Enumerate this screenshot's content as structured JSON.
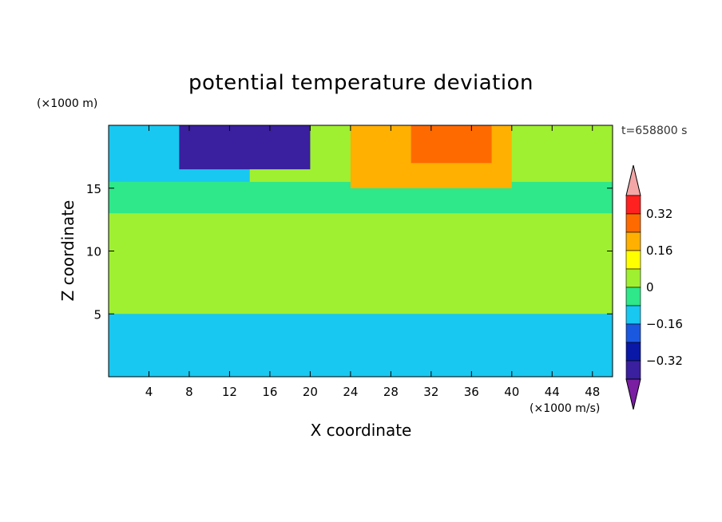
{
  "chart_data": {
    "type": "heatmap",
    "title": "potential temperature deviation",
    "xlabel": "X coordinate",
    "ylabel": "Z coordinate",
    "x_unit": "(×1000 m/s)",
    "y_unit": "(×1000 m)",
    "time_label": "t=658800 s",
    "xlim": [
      0,
      50
    ],
    "ylim": [
      0,
      20
    ],
    "x_ticks": [
      4,
      8,
      12,
      16,
      20,
      24,
      28,
      32,
      36,
      40,
      44,
      48
    ],
    "y_ticks": [
      5,
      10,
      15
    ],
    "colorbar": {
      "levels": [
        -0.48,
        -0.4,
        -0.32,
        -0.24,
        -0.16,
        -0.08,
        0,
        0.08,
        0.16,
        0.24,
        0.32,
        0.4
      ],
      "labels": [
        0.32,
        0.16,
        0,
        -0.16,
        -0.32
      ],
      "label_text": [
        "0.32",
        "0.16",
        "0",
        "−0.16",
        "−0.32"
      ],
      "colors": [
        "#7a1fa2",
        "#3a1f9e",
        "#0a18a8",
        "#1b58e0",
        "#18c8f0",
        "#2ee88a",
        "#9ff030",
        "#ffff00",
        "#ffb000",
        "#ff6a00",
        "#ff2020",
        "#f4a6a6"
      ],
      "extend": "both"
    },
    "field_regions": [
      {
        "x": [
          0,
          50
        ],
        "z": [
          0,
          20
        ],
        "value": 0.0
      },
      {
        "x": [
          0,
          50
        ],
        "z": [
          5,
          15
        ],
        "value": 0.04
      },
      {
        "x": [
          0,
          50
        ],
        "z": [
          13,
          15.5
        ],
        "value": -0.04
      },
      {
        "x": [
          0,
          14
        ],
        "z": [
          15.5,
          20
        ],
        "value": -0.12
      },
      {
        "x": [
          7,
          20
        ],
        "z": [
          16.5,
          20
        ],
        "value": -0.36
      },
      {
        "x": [
          24,
          40
        ],
        "z": [
          15,
          20
        ],
        "value": 0.2
      },
      {
        "x": [
          30,
          38
        ],
        "z": [
          17,
          20
        ],
        "value": 0.28
      },
      {
        "x": [
          0,
          50
        ],
        "z": [
          0,
          5
        ],
        "value": -0.1
      }
    ]
  }
}
